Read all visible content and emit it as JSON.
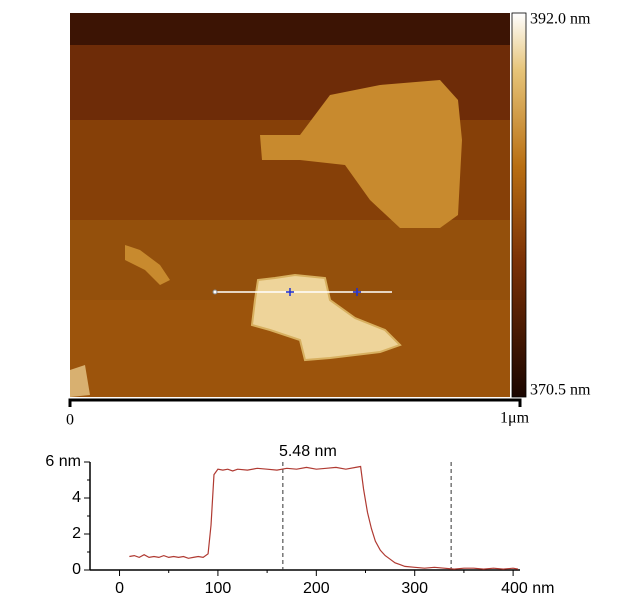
{
  "image": {
    "colorbar": {
      "max_label": "392.0 nm",
      "min_label": "370.5 nm"
    },
    "scale_bar": {
      "start_label": "0",
      "end_label": "1μm"
    }
  },
  "chart_data": {
    "type": "line",
    "annotation": "5.48 nm",
    "x": [
      10,
      15,
      20,
      25,
      30,
      35,
      40,
      45,
      50,
      55,
      60,
      65,
      70,
      75,
      80,
      85,
      90,
      93,
      96,
      100,
      105,
      110,
      115,
      120,
      130,
      140,
      150,
      160,
      170,
      180,
      190,
      200,
      210,
      220,
      230,
      240,
      245,
      248,
      252,
      256,
      260,
      265,
      270,
      275,
      280,
      285,
      290,
      300,
      310,
      320,
      330,
      340,
      350,
      360,
      370,
      380,
      390,
      400,
      405
    ],
    "series": [
      {
        "color": "#b03a32",
        "values": [
          0.75,
          0.8,
          0.7,
          0.85,
          0.7,
          0.75,
          0.7,
          0.8,
          0.7,
          0.75,
          0.7,
          0.75,
          0.65,
          0.7,
          0.75,
          0.7,
          0.9,
          2.5,
          5.3,
          5.6,
          5.55,
          5.6,
          5.5,
          5.6,
          5.55,
          5.65,
          5.6,
          5.55,
          5.65,
          5.6,
          5.7,
          5.6,
          5.65,
          5.7,
          5.6,
          5.7,
          5.75,
          4.5,
          3.2,
          2.3,
          1.6,
          1.1,
          0.8,
          0.6,
          0.4,
          0.3,
          0.2,
          0.15,
          0.1,
          0.15,
          0.1,
          0.05,
          0.1,
          0.1,
          0.05,
          0.1,
          0.05,
          0.1,
          0.05
        ]
      }
    ],
    "markers": [
      166,
      337
    ],
    "xlim": [
      -30,
      407
    ],
    "ylim": [
      0,
      6
    ],
    "xticks": [
      0,
      100,
      200,
      300,
      {
        "value": 400,
        "label": "400 nm"
      }
    ],
    "xminorticks": [
      50,
      150,
      250,
      350
    ],
    "yticks": [
      0,
      2,
      4,
      {
        "value": 6,
        "label": "6 nm"
      }
    ],
    "yminorticks": [
      1,
      3,
      5
    ]
  }
}
